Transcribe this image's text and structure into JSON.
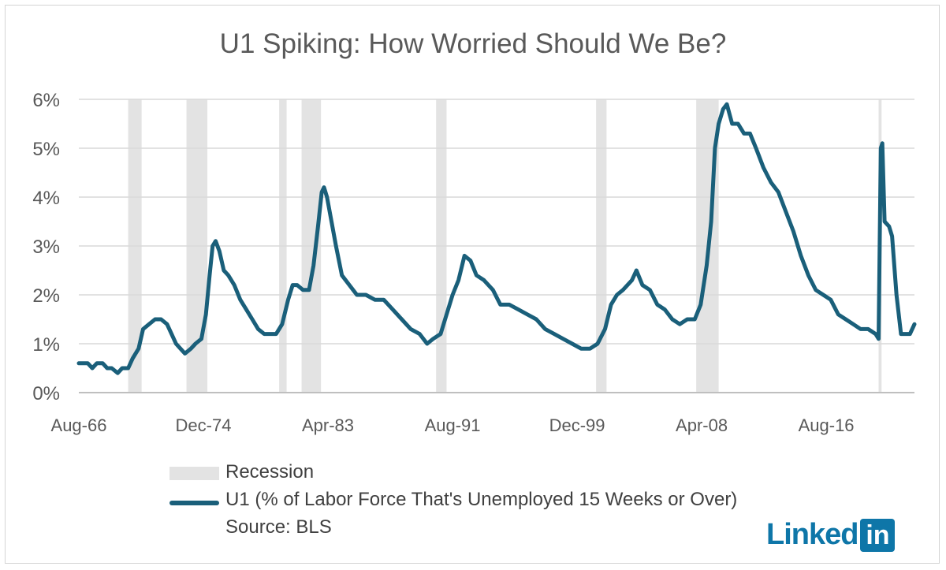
{
  "chart_data": {
    "type": "line",
    "title": "U1 Spiking: How Worried Should We Be?",
    "xlabel": "",
    "ylabel": "",
    "ylim": [
      0,
      6
    ],
    "y_ticks": [
      "0%",
      "1%",
      "2%",
      "3%",
      "4%",
      "5%",
      "6%"
    ],
    "x_ticks": [
      "Aug-66",
      "Dec-74",
      "Apr-83",
      "Aug-91",
      "Dec-99",
      "Apr-08",
      "Aug-16"
    ],
    "x_range_years": [
      1966.6,
      2022.5
    ],
    "grid": true,
    "recessions": [
      {
        "start": 1969.9,
        "end": 1970.8
      },
      {
        "start": 1973.8,
        "end": 1975.2
      },
      {
        "start": 1980.0,
        "end": 1980.5
      },
      {
        "start": 1981.5,
        "end": 1982.8
      },
      {
        "start": 1990.5,
        "end": 1991.2
      },
      {
        "start": 2001.2,
        "end": 2001.9
      },
      {
        "start": 2007.9,
        "end": 2009.4
      },
      {
        "start": 2020.1,
        "end": 2020.3
      }
    ],
    "series": [
      {
        "name": "U1 (% of Labor Force That's Unemployed 15 Weeks or Over)",
        "color": "#1a5f7a",
        "points": [
          [
            1966.6,
            0.6
          ],
          [
            1967.2,
            0.6
          ],
          [
            1967.5,
            0.5
          ],
          [
            1967.8,
            0.6
          ],
          [
            1968.2,
            0.6
          ],
          [
            1968.5,
            0.5
          ],
          [
            1968.8,
            0.5
          ],
          [
            1969.2,
            0.4
          ],
          [
            1969.5,
            0.5
          ],
          [
            1969.9,
            0.5
          ],
          [
            1970.2,
            0.7
          ],
          [
            1970.6,
            0.9
          ],
          [
            1970.9,
            1.3
          ],
          [
            1971.3,
            1.4
          ],
          [
            1971.7,
            1.5
          ],
          [
            1972.1,
            1.5
          ],
          [
            1972.5,
            1.4
          ],
          [
            1972.8,
            1.2
          ],
          [
            1973.1,
            1.0
          ],
          [
            1973.4,
            0.9
          ],
          [
            1973.7,
            0.8
          ],
          [
            1974.1,
            0.9
          ],
          [
            1974.4,
            1.0
          ],
          [
            1974.8,
            1.1
          ],
          [
            1975.1,
            1.6
          ],
          [
            1975.35,
            2.4
          ],
          [
            1975.55,
            3.0
          ],
          [
            1975.75,
            3.1
          ],
          [
            1976.0,
            2.9
          ],
          [
            1976.3,
            2.5
          ],
          [
            1976.6,
            2.4
          ],
          [
            1977.0,
            2.2
          ],
          [
            1977.4,
            1.9
          ],
          [
            1977.8,
            1.7
          ],
          [
            1978.2,
            1.5
          ],
          [
            1978.6,
            1.3
          ],
          [
            1979.0,
            1.2
          ],
          [
            1979.4,
            1.2
          ],
          [
            1979.8,
            1.2
          ],
          [
            1980.2,
            1.4
          ],
          [
            1980.6,
            1.9
          ],
          [
            1980.9,
            2.2
          ],
          [
            1981.2,
            2.2
          ],
          [
            1981.6,
            2.1
          ],
          [
            1982.0,
            2.1
          ],
          [
            1982.3,
            2.6
          ],
          [
            1982.6,
            3.4
          ],
          [
            1982.85,
            4.1
          ],
          [
            1983.0,
            4.2
          ],
          [
            1983.2,
            4.0
          ],
          [
            1983.5,
            3.5
          ],
          [
            1983.8,
            3.0
          ],
          [
            1984.2,
            2.4
          ],
          [
            1984.7,
            2.2
          ],
          [
            1985.2,
            2.0
          ],
          [
            1985.8,
            2.0
          ],
          [
            1986.4,
            1.9
          ],
          [
            1987.0,
            1.9
          ],
          [
            1987.6,
            1.7
          ],
          [
            1988.2,
            1.5
          ],
          [
            1988.8,
            1.3
          ],
          [
            1989.4,
            1.2
          ],
          [
            1989.9,
            1.0
          ],
          [
            1990.3,
            1.1
          ],
          [
            1990.8,
            1.2
          ],
          [
            1991.2,
            1.6
          ],
          [
            1991.6,
            2.0
          ],
          [
            1992.0,
            2.3
          ],
          [
            1992.4,
            2.8
          ],
          [
            1992.8,
            2.7
          ],
          [
            1993.2,
            2.4
          ],
          [
            1993.7,
            2.3
          ],
          [
            1994.3,
            2.1
          ],
          [
            1994.8,
            1.8
          ],
          [
            1995.4,
            1.8
          ],
          [
            1996.0,
            1.7
          ],
          [
            1996.6,
            1.6
          ],
          [
            1997.2,
            1.5
          ],
          [
            1997.8,
            1.3
          ],
          [
            1998.4,
            1.2
          ],
          [
            1999.0,
            1.1
          ],
          [
            1999.6,
            1.0
          ],
          [
            2000.2,
            0.9
          ],
          [
            2000.8,
            0.9
          ],
          [
            2001.3,
            1.0
          ],
          [
            2001.8,
            1.3
          ],
          [
            2002.2,
            1.8
          ],
          [
            2002.6,
            2.0
          ],
          [
            2003.0,
            2.1
          ],
          [
            2003.6,
            2.3
          ],
          [
            2003.9,
            2.5
          ],
          [
            2004.3,
            2.2
          ],
          [
            2004.8,
            2.1
          ],
          [
            2005.3,
            1.8
          ],
          [
            2005.8,
            1.7
          ],
          [
            2006.3,
            1.5
          ],
          [
            2006.8,
            1.4
          ],
          [
            2007.3,
            1.5
          ],
          [
            2007.8,
            1.5
          ],
          [
            2008.2,
            1.8
          ],
          [
            2008.6,
            2.6
          ],
          [
            2008.9,
            3.5
          ],
          [
            2009.15,
            5.0
          ],
          [
            2009.4,
            5.5
          ],
          [
            2009.7,
            5.8
          ],
          [
            2009.95,
            5.9
          ],
          [
            2010.3,
            5.5
          ],
          [
            2010.7,
            5.5
          ],
          [
            2011.1,
            5.3
          ],
          [
            2011.5,
            5.3
          ],
          [
            2011.9,
            5.0
          ],
          [
            2012.4,
            4.6
          ],
          [
            2012.9,
            4.3
          ],
          [
            2013.4,
            4.1
          ],
          [
            2013.9,
            3.7
          ],
          [
            2014.4,
            3.3
          ],
          [
            2014.9,
            2.8
          ],
          [
            2015.4,
            2.4
          ],
          [
            2015.9,
            2.1
          ],
          [
            2016.4,
            2.0
          ],
          [
            2016.9,
            1.9
          ],
          [
            2017.4,
            1.6
          ],
          [
            2017.9,
            1.5
          ],
          [
            2018.4,
            1.4
          ],
          [
            2018.9,
            1.3
          ],
          [
            2019.4,
            1.3
          ],
          [
            2019.9,
            1.2
          ],
          [
            2020.1,
            1.1
          ],
          [
            2020.25,
            5.0
          ],
          [
            2020.35,
            5.1
          ],
          [
            2020.5,
            3.5
          ],
          [
            2020.8,
            3.4
          ],
          [
            2021.0,
            3.2
          ],
          [
            2021.3,
            2.0
          ],
          [
            2021.6,
            1.2
          ],
          [
            2021.9,
            1.2
          ],
          [
            2022.2,
            1.2
          ],
          [
            2022.5,
            1.4
          ]
        ]
      }
    ]
  },
  "legend": {
    "recession_label": "Recession",
    "series_label": "U1 (% of Labor Force That's Unemployed 15 Weeks or Over)",
    "source_label": "Source: BLS"
  },
  "logo": {
    "word": "Linked",
    "box": "in"
  }
}
